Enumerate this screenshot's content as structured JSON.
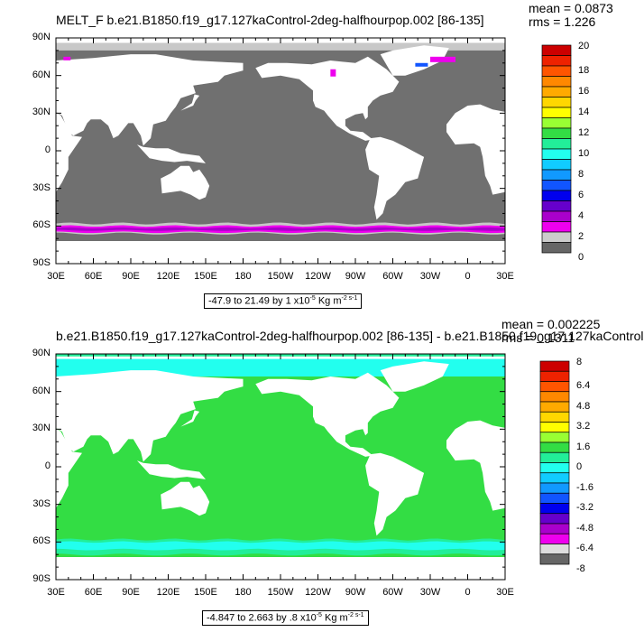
{
  "chart_data": [
    {
      "type": "heatmap",
      "title": "MELT_F b.e21.B1850.f19_g17.127kaControl-2deg-halfhourpop.002 [86-135]",
      "stats": {
        "mean": "mean = 0.0873",
        "rms": "rms = 1.226"
      },
      "range_label": {
        "text": "-47.9 to 21.49 by 1 x10",
        "sup1": "-5",
        "unit": " Kg m",
        "sup2": "-2 s-1"
      },
      "x_ticks": [
        "30E",
        "60E",
        "90E",
        "120E",
        "150E",
        "180",
        "150W",
        "120W",
        "90W",
        "60W",
        "30W",
        "0",
        "30E"
      ],
      "y_ticks": [
        "90N",
        "60N",
        "30N",
        "0",
        "30S",
        "60S",
        "90S"
      ],
      "colorbar": {
        "labels": [
          "20",
          "18",
          "16",
          "14",
          "12",
          "10",
          "8",
          "6",
          "4",
          "2",
          "0"
        ],
        "colors": [
          "#cc0000",
          "#ee2200",
          "#ff5500",
          "#ff8800",
          "#ffaa00",
          "#ffd700",
          "#ffff00",
          "#99ff33",
          "#33dd44",
          "#22ee99",
          "#22ffee",
          "#11ccff",
          "#1199ff",
          "#1155ff",
          "#0000ee",
          "#6600cc",
          "#aa00cc",
          "#ee00ee",
          "#cccccc",
          "#666666"
        ]
      }
    },
    {
      "type": "heatmap",
      "title": "b.e21.B1850.f19_g17.127kaControl-2deg-halfhourpop.002 [86-135] - b.e21.B1850.f19_g17.127kaControl",
      "stats": {
        "mean": "mean = 0.002225",
        "rms": "rms = 0.1311"
      },
      "range_label": {
        "text": "-4.847 to 2.663 by .8 x10",
        "sup1": "-5",
        "unit": " Kg m",
        "sup2": "-2 s-1"
      },
      "x_ticks": [
        "30E",
        "60E",
        "90E",
        "120E",
        "150E",
        "180",
        "150W",
        "120W",
        "90W",
        "60W",
        "30W",
        "0",
        "30E"
      ],
      "y_ticks": [
        "90N",
        "60N",
        "30N",
        "0",
        "30S",
        "60S",
        "90S"
      ],
      "colorbar": {
        "labels": [
          "8",
          "6.4",
          "4.8",
          "3.2",
          "1.6",
          "0",
          "-1.6",
          "-3.2",
          "-4.8",
          "-6.4",
          "-8"
        ],
        "colors": [
          "#cc0000",
          "#ee2200",
          "#ff5500",
          "#ff8800",
          "#ffaa00",
          "#ffd700",
          "#ffff00",
          "#99ff33",
          "#33dd44",
          "#22ee99",
          "#22ffee",
          "#11ccff",
          "#1199ff",
          "#1155ff",
          "#0000ee",
          "#6600cc",
          "#aa00cc",
          "#ee00ee",
          "#dddddd",
          "#666666"
        ]
      }
    }
  ],
  "colors": {
    "ocean_top": "#707070",
    "ice_band": "#c8c8c8",
    "magenta": "#ee00ee",
    "purple": "#aa00cc",
    "blue": "#1155ff",
    "ocean_bottom": "#33dd44",
    "cyan": "#22ffee",
    "aqua": "#22ee99",
    "land": "#ffffff"
  }
}
